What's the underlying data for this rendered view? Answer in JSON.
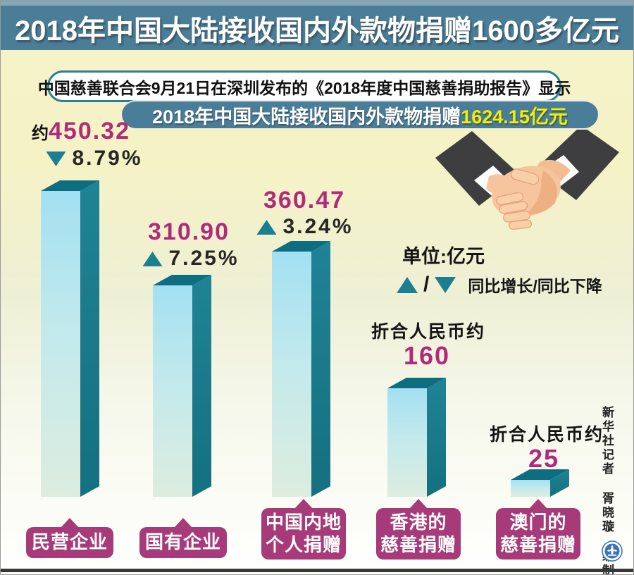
{
  "header": {
    "title": "2018年中国大陆接收国内外款物捐赠1600多亿元",
    "info_box": "中国慈善联合会9月21日在深圳发布的《2018年度中国慈善捐助报告》显示",
    "sub_banner": {
      "prefix": "2018年中国大陆接收国内外款物捐赠",
      "highlight": "1624.15亿元"
    }
  },
  "legend": {
    "unit": "单位:亿元",
    "separator": "/",
    "text": "同比增长/同比下降"
  },
  "credit": "新华社记者 胥晓璇 编制",
  "colors": {
    "banner_bg": "#4a7d97",
    "teal_triangle": "#1b7e91",
    "bar_side": "#1b7e91",
    "bar_top": "#0d6e81",
    "value_magenta": "#b12a7a",
    "bubble_magenta": "#a73a79",
    "highlight_yellow": "#f2ef00",
    "background_yellow": "#f5f2c5"
  },
  "chart_data": {
    "type": "bar",
    "unit": "亿元",
    "title": "2018年中国大陆接收国内外款物捐赠1624.15亿元",
    "categories": [
      "民营企业",
      "国有企业",
      "中国内地个人捐赠",
      "香港的慈善捐赠",
      "澳门的慈善捐赠"
    ],
    "values": [
      450.32,
      310.9,
      360.47,
      160,
      25
    ],
    "changes_pct": [
      -8.79,
      7.25,
      3.24,
      null,
      null
    ],
    "legend_entries": [
      "同比增长",
      "同比下降"
    ],
    "bars": [
      {
        "category_lines": [
          "民营企业"
        ],
        "value": 450.32,
        "value_prefix": "约",
        "value_display": "450.32",
        "change_display": "8.79%",
        "direction": "down"
      },
      {
        "category_lines": [
          "国有企业"
        ],
        "value": 310.9,
        "value_display": "310.90",
        "change_display": "7.25%",
        "direction": "up"
      },
      {
        "category_lines": [
          "中国内地",
          "个人捐赠"
        ],
        "value": 360.47,
        "value_display": "360.47",
        "change_display": "3.24%",
        "direction": "up"
      },
      {
        "category_lines": [
          "香港的",
          "慈善捐赠"
        ],
        "value": 160,
        "value_display": "160",
        "value_note": "折合人民币约"
      },
      {
        "category_lines": [
          "澳门的",
          "慈善捐赠"
        ],
        "value": 25,
        "value_display": "25",
        "value_note": "折合人民币约"
      }
    ]
  }
}
